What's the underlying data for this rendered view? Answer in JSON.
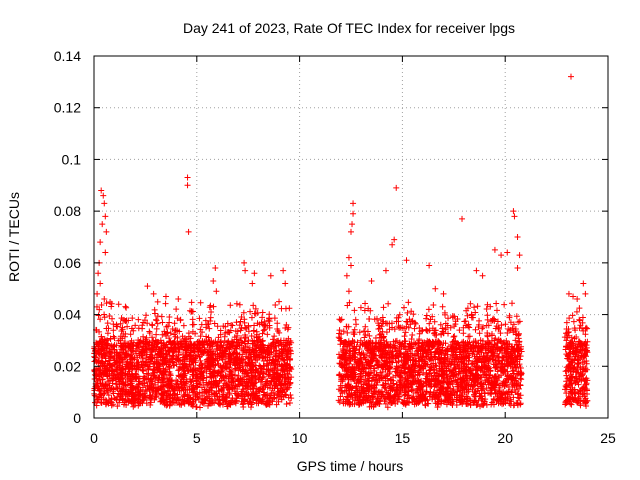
{
  "chart_data": {
    "type": "scatter",
    "title": "Day 241 of 2023, Rate Of TEC Index for receiver lpgs",
    "xlabel": "GPS time / hours",
    "ylabel": "ROTI / TECUs",
    "xlim": [
      0,
      25
    ],
    "ylim": [
      0,
      0.14
    ],
    "x_ticks": [
      "0",
      "5",
      "10",
      "15",
      "20",
      "25"
    ],
    "y_ticks": [
      "0",
      "0.02",
      "0.04",
      "0.06",
      "0.08",
      "0.1",
      "0.12",
      "0.14"
    ],
    "grid": true,
    "marker": "+",
    "color": "#ff0000",
    "coverage_hours": [
      [
        0,
        9.6
      ],
      [
        11.9,
        20.8
      ],
      [
        22.9,
        24.0
      ]
    ],
    "series": [
      {
        "name": "",
        "points": [
          [
            0.35,
            0.088
          ],
          [
            0.45,
            0.086
          ],
          [
            0.5,
            0.083
          ],
          [
            0.55,
            0.078
          ],
          [
            0.4,
            0.075
          ],
          [
            0.6,
            0.072
          ],
          [
            0.3,
            0.068
          ],
          [
            0.55,
            0.064
          ],
          [
            0.25,
            0.06
          ],
          [
            0.2,
            0.056
          ],
          [
            0.3,
            0.052
          ],
          [
            0.15,
            0.048
          ],
          [
            0.5,
            0.046
          ],
          [
            1.2,
            0.044
          ],
          [
            2.6,
            0.051
          ],
          [
            2.9,
            0.048
          ],
          [
            3.5,
            0.047
          ],
          [
            4.1,
            0.046
          ],
          [
            4.55,
            0.093
          ],
          [
            4.55,
            0.09
          ],
          [
            4.6,
            0.072
          ],
          [
            5.9,
            0.058
          ],
          [
            5.8,
            0.053
          ],
          [
            5.95,
            0.049
          ],
          [
            7.3,
            0.06
          ],
          [
            7.35,
            0.057
          ],
          [
            7.8,
            0.056
          ],
          [
            7.7,
            0.052
          ],
          [
            8.6,
            0.055
          ],
          [
            9.2,
            0.057
          ],
          [
            9.3,
            0.052
          ],
          [
            9.0,
            0.045
          ],
          [
            12.4,
            0.062
          ],
          [
            12.5,
            0.059
          ],
          [
            12.6,
            0.083
          ],
          [
            12.6,
            0.079
          ],
          [
            12.55,
            0.075
          ],
          [
            12.5,
            0.072
          ],
          [
            12.3,
            0.055
          ],
          [
            12.4,
            0.049
          ],
          [
            13.5,
            0.053
          ],
          [
            14.2,
            0.057
          ],
          [
            14.6,
            0.069
          ],
          [
            14.5,
            0.067
          ],
          [
            14.7,
            0.089
          ],
          [
            15.2,
            0.061
          ],
          [
            16.3,
            0.059
          ],
          [
            16.6,
            0.05
          ],
          [
            17.0,
            0.048
          ],
          [
            17.9,
            0.077
          ],
          [
            18.6,
            0.057
          ],
          [
            18.9,
            0.055
          ],
          [
            19.5,
            0.065
          ],
          [
            19.8,
            0.063
          ],
          [
            20.1,
            0.064
          ],
          [
            20.4,
            0.08
          ],
          [
            20.45,
            0.078
          ],
          [
            20.6,
            0.07
          ],
          [
            20.7,
            0.063
          ],
          [
            20.6,
            0.058
          ],
          [
            23.2,
            0.132
          ],
          [
            23.1,
            0.048
          ],
          [
            23.3,
            0.047
          ],
          [
            23.5,
            0.046
          ],
          [
            23.8,
            0.052
          ],
          [
            23.9,
            0.048
          ],
          [
            23.6,
            0.038
          ],
          [
            23.4,
            0.034
          ]
        ]
      }
    ]
  }
}
